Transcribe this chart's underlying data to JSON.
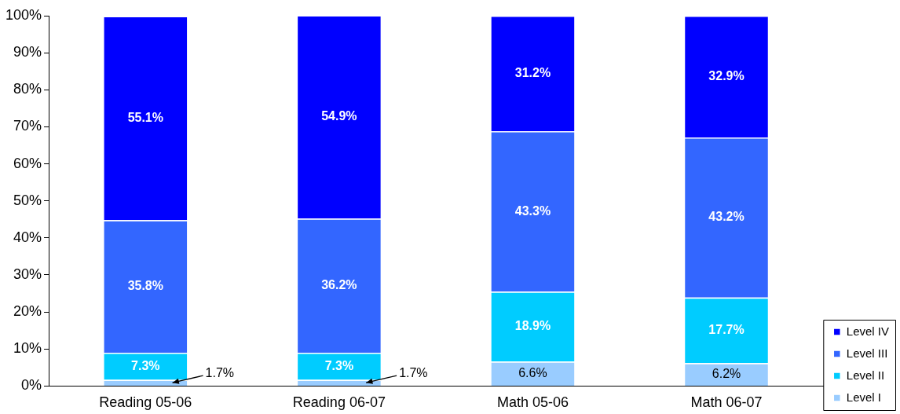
{
  "chart_data": {
    "type": "bar",
    "stacked": true,
    "categories": [
      "Reading 05-06",
      "Reading 06-07",
      "Math 05-06",
      "Math 06-07"
    ],
    "series": [
      {
        "name": "Level I",
        "color": "#99ccff",
        "values": [
          1.7,
          1.7,
          6.6,
          6.2
        ],
        "value_labels": [
          "1.7%",
          "1.7%",
          "6.6%",
          "6.2%"
        ]
      },
      {
        "name": "Level II",
        "color": "#00ccff",
        "values": [
          7.3,
          7.3,
          18.9,
          17.7
        ],
        "value_labels": [
          "7.3%",
          "7.3%",
          "18.9%",
          "17.7%"
        ]
      },
      {
        "name": "Level III",
        "color": "#3366ff",
        "values": [
          35.8,
          36.2,
          43.3,
          43.2
        ],
        "value_labels": [
          "35.8%",
          "36.2%",
          "43.3%",
          "43.2%"
        ]
      },
      {
        "name": "Level IV",
        "color": "#0000ff",
        "values": [
          55.1,
          54.9,
          31.2,
          32.9
        ],
        "value_labels": [
          "55.1%",
          "54.9%",
          "31.2%",
          "32.9%"
        ]
      }
    ],
    "ylim": [
      0,
      100
    ],
    "yticks": [
      {
        "value": 0,
        "label": "0%"
      },
      {
        "value": 10,
        "label": "10%"
      },
      {
        "value": 20,
        "label": "20%"
      },
      {
        "value": 30,
        "label": "30%"
      },
      {
        "value": 40,
        "label": "40%"
      },
      {
        "value": 50,
        "label": "50%"
      },
      {
        "value": 60,
        "label": "60%"
      },
      {
        "value": 70,
        "label": "70%"
      },
      {
        "value": 80,
        "label": "80%"
      },
      {
        "value": 90,
        "label": "90%"
      },
      {
        "value": 100,
        "label": "100%"
      }
    ],
    "grid": false,
    "legend": "bottom right"
  }
}
